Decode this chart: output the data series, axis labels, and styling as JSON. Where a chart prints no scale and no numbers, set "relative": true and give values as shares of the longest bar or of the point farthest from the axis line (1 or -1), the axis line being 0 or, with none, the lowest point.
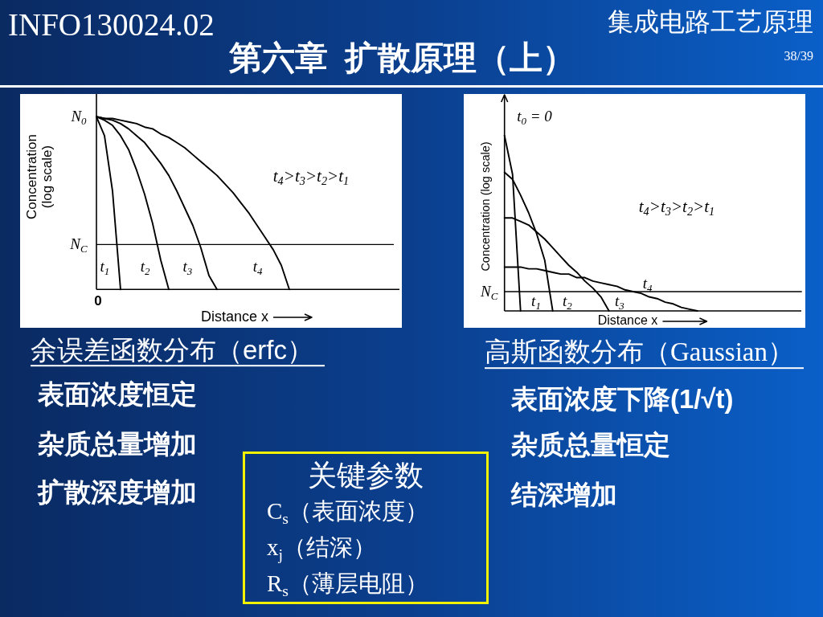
{
  "chart_data": [
    {
      "type": "other",
      "title": "第六章  扩散原理（上）",
      "annotations": [
        "INFO130024.02",
        "集成电路工艺原理",
        "38/39"
      ]
    },
    {
      "type": "line",
      "title": "余误差函数分布（erfc）",
      "xlabel": "Distance x",
      "ylabel": "Concentration (log scale)",
      "relative": true,
      "categories": [
        null,
        null,
        null,
        null,
        null,
        null,
        null,
        null,
        null,
        null,
        null,
        null,
        null,
        null,
        null,
        null,
        null,
        null,
        null,
        null,
        null,
        null,
        null,
        null,
        null,
        null,
        null,
        null,
        null,
        null,
        null,
        null,
        null,
        null,
        null,
        null,
        null,
        null
      ],
      "series": [
        {
          "name": "t$_{1}$",
          "color": "#000000",
          "values": [
            1,
            0.89,
            0.57,
            0,
            null,
            null,
            null,
            null,
            null,
            null,
            null,
            null,
            null,
            null,
            null,
            null,
            null,
            null,
            null,
            null,
            null,
            null,
            null,
            null,
            null,
            null,
            null,
            null,
            null,
            null,
            null,
            null,
            null,
            null,
            null,
            null,
            null,
            null
          ]
        },
        {
          "name": "t$_{2}$",
          "color": "#000000",
          "values": [
            1,
            0.98,
            0.95,
            0.89,
            0.81,
            0.69,
            0.55,
            0.38,
            0.17,
            0,
            null,
            null,
            null,
            null,
            null,
            null,
            null,
            null,
            null,
            null,
            null,
            null,
            null,
            null,
            null,
            null,
            null,
            null,
            null,
            null,
            null,
            null,
            null,
            null,
            null,
            null,
            null,
            null
          ]
        },
        {
          "name": "t$_{3}$",
          "color": "#000000",
          "values": [
            1,
            0.99,
            0.98,
            0.96,
            0.93,
            0.89,
            0.85,
            0.79,
            0.73,
            0.66,
            0.57,
            0.47,
            0.37,
            0.24,
            0.08,
            0,
            null,
            null,
            null,
            null,
            null,
            null,
            null,
            null,
            null,
            null,
            null,
            null,
            null,
            null,
            null,
            null,
            null,
            null,
            null,
            null,
            null,
            null
          ]
        },
        {
          "name": "t$_{4}$",
          "color": "#000000",
          "values": [
            1,
            0.99,
            0.99,
            0.98,
            0.97,
            0.96,
            0.94,
            0.93,
            0.9,
            0.88,
            0.85,
            0.82,
            0.78,
            0.74,
            0.7,
            0.66,
            0.61,
            0.56,
            0.5,
            0.44,
            0.37,
            0.3,
            0.23,
            0.14,
            0,
            null,
            null,
            null,
            null,
            null,
            null,
            null,
            null,
            null,
            null,
            null,
            null,
            null
          ]
        }
      ],
      "ref_lines": [
        {
          "axis": "y",
          "value": 0.26,
          "label": "N$_{C}$",
          "color": "#000000"
        }
      ],
      "annotations": [
        "N$_{0}$",
        "0",
        "t$_{4}$>t$_{3}$>t$_{2}$>t$_{1}$",
        "表面浓度恒定",
        "杂质总量增加",
        "扩散深度增加"
      ]
    },
    {
      "type": "line",
      "title": "高斯函数分布（Gaussian）",
      "xlabel": "Distance x",
      "ylabel": "Concentration (log scale)",
      "relative": true,
      "categories": [
        null,
        null,
        null,
        null,
        null,
        null,
        null,
        null,
        null,
        null,
        null,
        null,
        null,
        null,
        null,
        null,
        null,
        null,
        null,
        null,
        null,
        null,
        null,
        null,
        null,
        null,
        null,
        null,
        null,
        null,
        null,
        null,
        null,
        null,
        null,
        null,
        null,
        null
      ],
      "series": [
        {
          "name": "t$_{1}$",
          "color": "#000000",
          "values": [
            1,
            0.78,
            0,
            null,
            null,
            null,
            null,
            null,
            null,
            null,
            null,
            null,
            null,
            null,
            null,
            null,
            null,
            null,
            null,
            null,
            null,
            null,
            null,
            null,
            null,
            null,
            null,
            null,
            null,
            null,
            null,
            null,
            null,
            null,
            null,
            null,
            null,
            null
          ]
        },
        {
          "name": "t$_{2}$",
          "color": "#000000",
          "values": [
            0.79,
            0.75,
            0.66,
            0.56,
            0.44,
            0.29,
            0,
            null,
            null,
            null,
            null,
            null,
            null,
            null,
            null,
            null,
            null,
            null,
            null,
            null,
            null,
            null,
            null,
            null,
            null,
            null,
            null,
            null,
            null,
            null,
            null,
            null,
            null,
            null,
            null,
            null,
            null,
            null
          ]
        },
        {
          "name": "t$_{3}$",
          "color": "#000000",
          "values": [
            0.53,
            0.53,
            0.51,
            0.49,
            0.45,
            0.41,
            0.36,
            0.31,
            0.26,
            0.22,
            0.17,
            0.13,
            0.08,
            0,
            null,
            null,
            null,
            null,
            null,
            null,
            null,
            null,
            null,
            null,
            null,
            null,
            null,
            null,
            null,
            null,
            null,
            null,
            null,
            null,
            null,
            null,
            null,
            null
          ]
        },
        {
          "name": "t$_{4}$",
          "color": "#000000",
          "values": [
            0.25,
            0.25,
            0.25,
            0.24,
            0.24,
            0.23,
            0.22,
            0.21,
            0.21,
            0.19,
            0.19,
            0.17,
            0.16,
            0.15,
            0.14,
            0.12,
            0.11,
            0.1,
            0.08,
            0.07,
            0.05,
            0.04,
            0.02,
            0.01,
            0,
            null,
            null,
            null,
            null,
            null,
            null,
            null,
            null,
            null,
            null,
            null,
            null,
            null
          ]
        }
      ],
      "ref_lines": [
        {
          "axis": "y",
          "value": 0.11,
          "label": "N$_{C}$",
          "color": "#000000"
        }
      ],
      "annotations": [
        "t$_{0}$ = 0",
        "t$_{4}$>t$_{3}$>t$_{2}$>t$_{1}$",
        "表面浓度下降(1/√t)",
        "杂质总量恒定",
        "结深增加"
      ]
    },
    {
      "type": "other",
      "title": "关键参数",
      "annotations": [
        "C$_{s}$（表面浓度）",
        "x$_{j}$（结深）",
        "R$_{s}$（薄层电阻）"
      ]
    }
  ]
}
